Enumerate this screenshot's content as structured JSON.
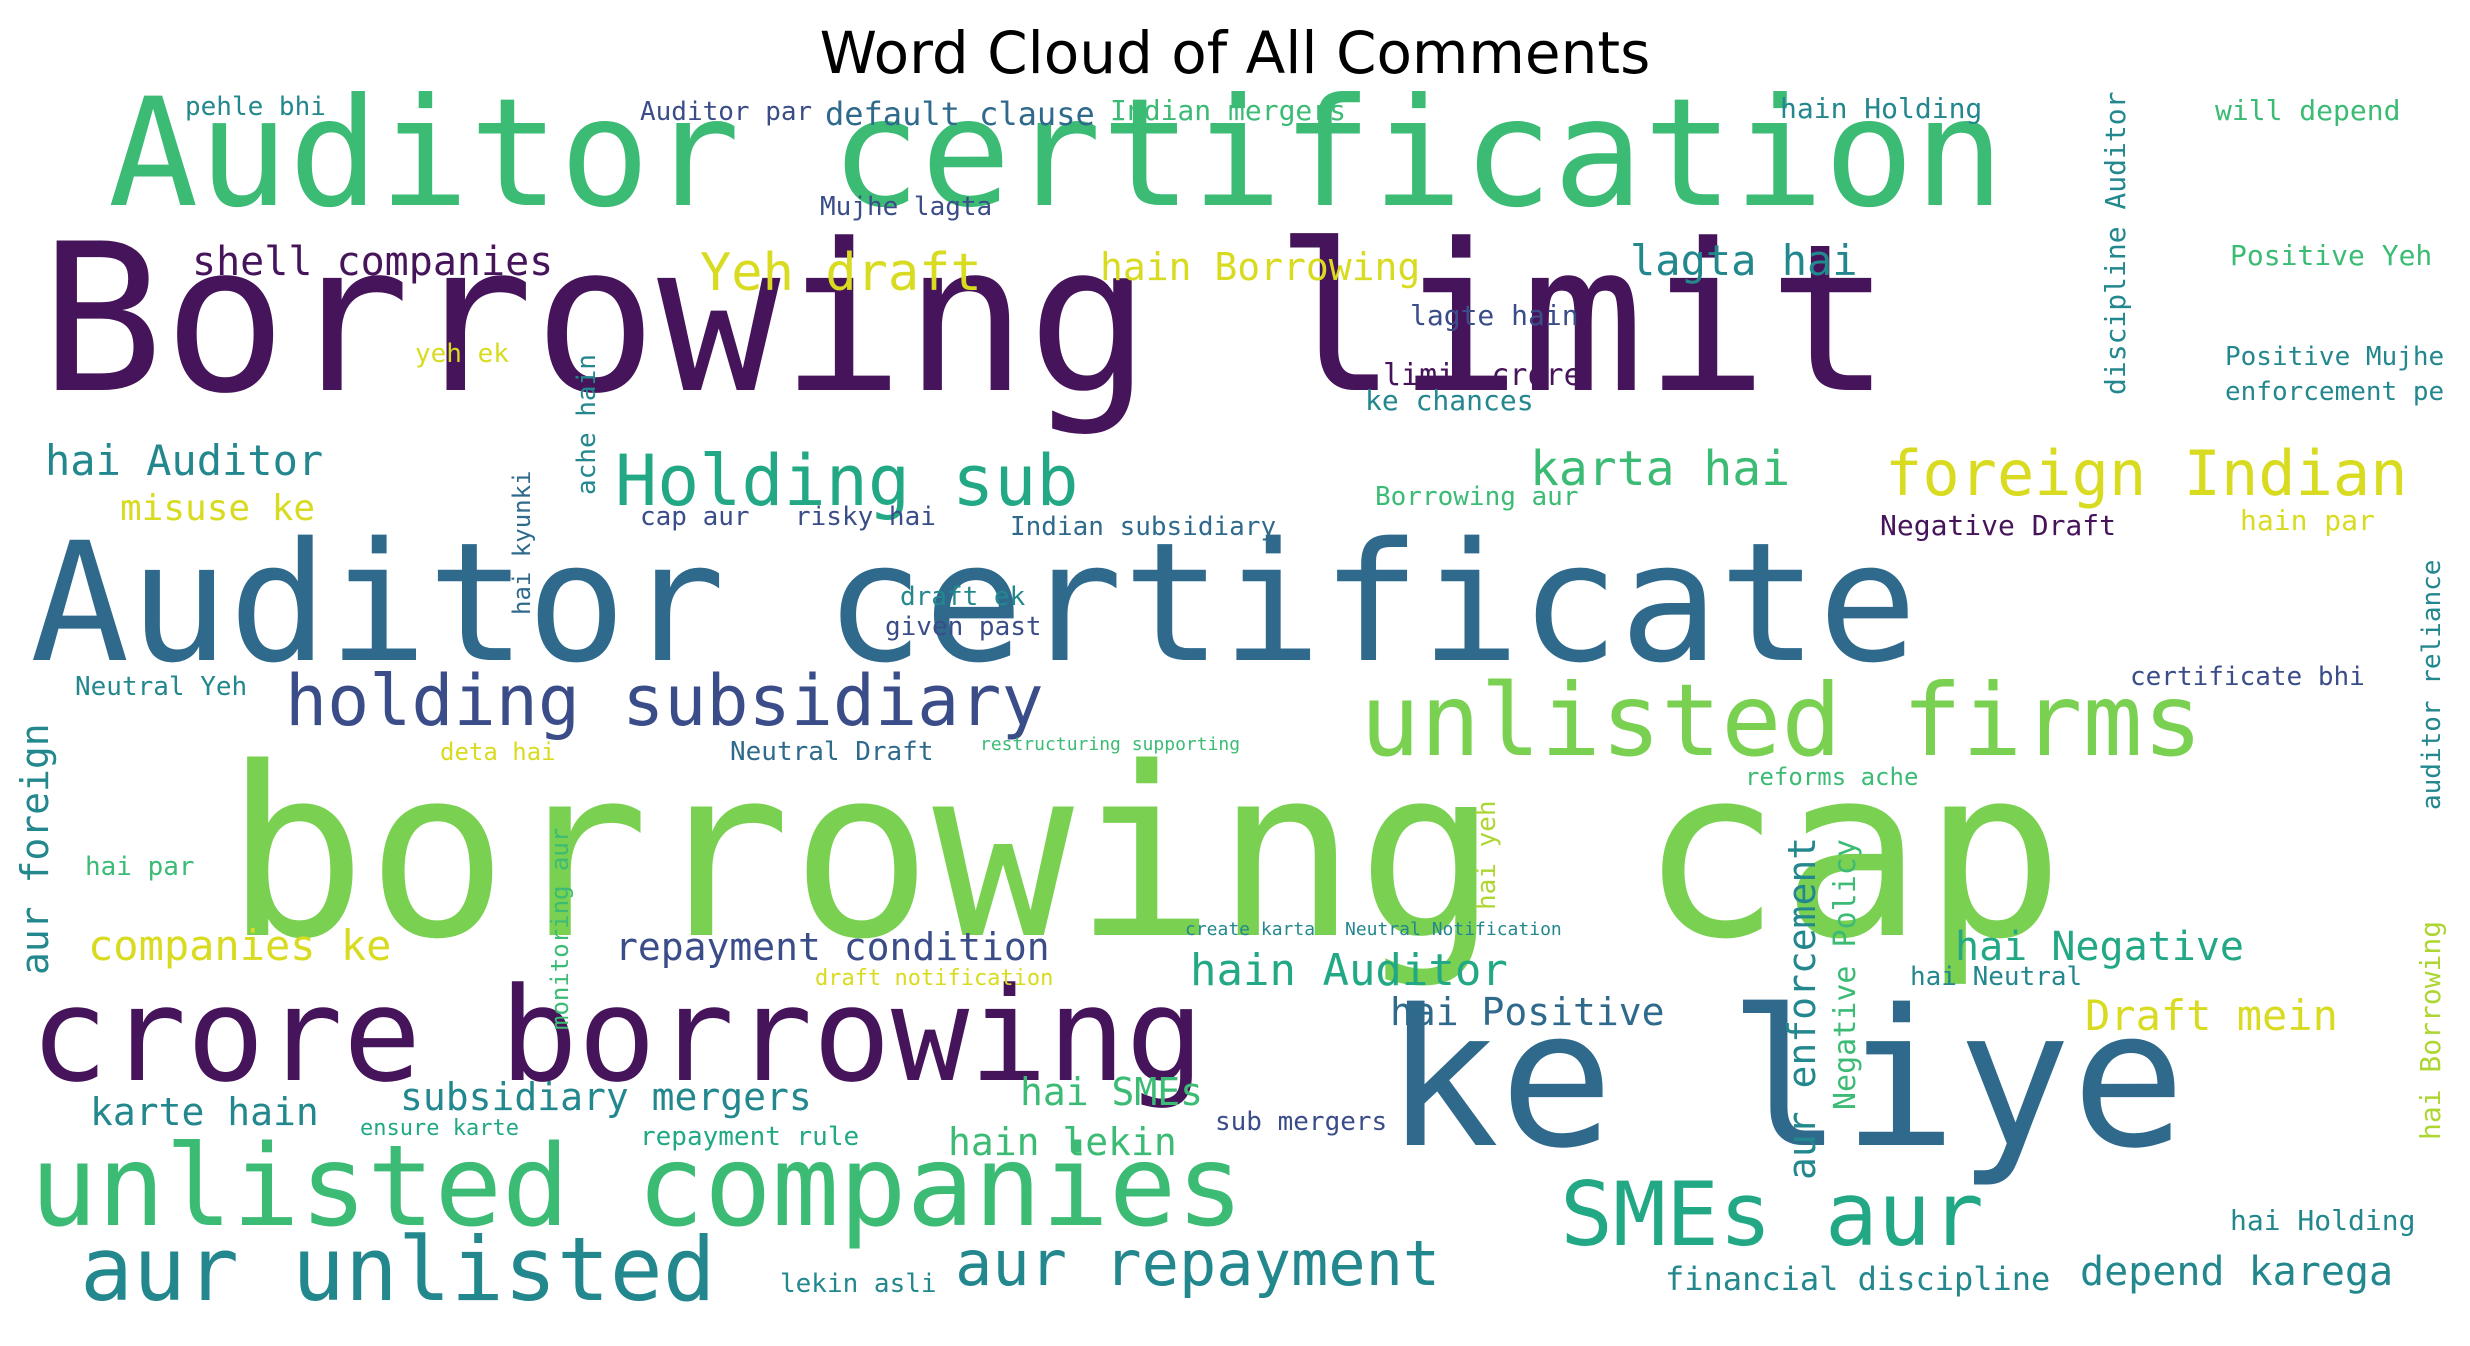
{
  "chart_data": {
    "type": "wordcloud",
    "title": "Word Cloud of All Comments",
    "colormap": "viridis",
    "colors": {
      "dark_purple": "#46145a",
      "purple": "#482a78",
      "blue_purple": "#3b4d89",
      "blue": "#2f6a8d",
      "teal": "#23878e",
      "green_teal": "#22a884",
      "green": "#3cbb75",
      "light_green": "#7ad151",
      "yellow_green": "#aed633",
      "yellow": "#d8db20"
    },
    "words": [
      {
        "text": "Auditor certification",
        "weight": 100,
        "color": "green"
      },
      {
        "text": "Borrowing limit",
        "weight": 100,
        "color": "dark_purple"
      },
      {
        "text": "Auditor certificate",
        "weight": 100,
        "color": "blue"
      },
      {
        "text": "borrowing cap",
        "weight": 100,
        "color": "light_green"
      },
      {
        "text": "crore borrowing",
        "weight": 100,
        "color": "dark_purple"
      },
      {
        "text": "ke liye",
        "weight": 100,
        "color": "blue"
      },
      {
        "text": "unlisted companies",
        "weight": 100,
        "color": "green"
      },
      {
        "text": "unlisted firms",
        "weight": 100,
        "color": "light_green"
      },
      {
        "text": "aur unlisted",
        "weight": 100,
        "color": "teal"
      },
      {
        "text": "SMEs aur",
        "weight": 100,
        "color": "green_teal"
      },
      {
        "text": "holding subsidiary",
        "weight": 100,
        "color": "blue_purple"
      },
      {
        "text": "Holding sub",
        "weight": 100,
        "color": "green_teal"
      },
      {
        "text": "foreign Indian",
        "weight": 100,
        "color": "yellow"
      },
      {
        "text": "aur repayment",
        "weight": 100,
        "color": "teal"
      },
      {
        "text": "Yeh draft",
        "weight": 100,
        "color": "yellow"
      },
      {
        "text": "karta hai",
        "weight": 100,
        "color": "green"
      },
      {
        "text": "shell companies",
        "weight": 100,
        "color": "dark_purple"
      },
      {
        "text": "hai Auditor",
        "weight": 100,
        "color": "teal"
      },
      {
        "text": "lagta hai",
        "weight": 100,
        "color": "teal"
      },
      {
        "text": "hain Borrowing",
        "weight": 100,
        "color": "yellow"
      },
      {
        "text": "companies ke",
        "weight": 100,
        "color": "yellow"
      },
      {
        "text": "repayment condition",
        "weight": 100,
        "color": "blue_purple"
      },
      {
        "text": "hain Auditor",
        "weight": 100,
        "color": "green_teal"
      },
      {
        "text": "hai Negative",
        "weight": 100,
        "color": "green_teal"
      },
      {
        "text": "hai Positive",
        "weight": 100,
        "color": "blue"
      },
      {
        "text": "Draft mein",
        "weight": 100,
        "color": "yellow"
      },
      {
        "text": "subsidiary mergers",
        "weight": 100,
        "color": "teal"
      },
      {
        "text": "hai SMEs",
        "weight": 100,
        "color": "green"
      },
      {
        "text": "karte hain",
        "weight": 100,
        "color": "teal"
      },
      {
        "text": "hain lekin",
        "weight": 100,
        "color": "green"
      },
      {
        "text": "depend karega",
        "weight": 100,
        "color": "teal"
      },
      {
        "text": "financial discipline",
        "weight": 100,
        "color": "teal"
      },
      {
        "text": "misuse ke",
        "weight": 100,
        "color": "yellow"
      },
      {
        "text": "default clause",
        "weight": 100,
        "color": "blue"
      },
      {
        "text": "Indian mergers",
        "weight": 100,
        "color": "green"
      },
      {
        "text": "Auditor par",
        "weight": 100,
        "color": "blue_purple"
      },
      {
        "text": "pehle bhi",
        "weight": 100,
        "color": "teal"
      },
      {
        "text": "hain Holding",
        "weight": 100,
        "color": "teal"
      },
      {
        "text": "will depend",
        "weight": 100,
        "color": "green"
      },
      {
        "text": "Mujhe lagta",
        "weight": 100,
        "color": "blue_purple"
      },
      {
        "text": "Positive Yeh",
        "weight": 100,
        "color": "green"
      },
      {
        "text": "Positive Mujhe",
        "weight": 100,
        "color": "teal"
      },
      {
        "text": "enforcement pe",
        "weight": 100,
        "color": "teal"
      },
      {
        "text": "lagte hain",
        "weight": 100,
        "color": "blue_purple"
      },
      {
        "text": "limit crore",
        "weight": 100,
        "color": "dark_purple"
      },
      {
        "text": "ke chances",
        "weight": 100,
        "color": "teal"
      },
      {
        "text": "yeh ek",
        "weight": 100,
        "color": "yellow"
      },
      {
        "text": "Borrowing aur",
        "weight": 100,
        "color": "green"
      },
      {
        "text": "cap aur",
        "weight": 100,
        "color": "blue_purple"
      },
      {
        "text": "risky hai",
        "weight": 100,
        "color": "blue_purple"
      },
      {
        "text": "Indian subsidiary",
        "weight": 100,
        "color": "blue"
      },
      {
        "text": "Negative Draft",
        "weight": 100,
        "color": "dark_purple"
      },
      {
        "text": "hain par",
        "weight": 100,
        "color": "yellow"
      },
      {
        "text": "draft ek",
        "weight": 100,
        "color": "teal"
      },
      {
        "text": "given past",
        "weight": 100,
        "color": "blue_purple"
      },
      {
        "text": "certificate bhi",
        "weight": 100,
        "color": "blue_purple"
      },
      {
        "text": "Neutral Yeh",
        "weight": 100,
        "color": "teal"
      },
      {
        "text": "Neutral Draft",
        "weight": 100,
        "color": "blue"
      },
      {
        "text": "deta hai",
        "weight": 100,
        "color": "yellow"
      },
      {
        "text": "reforms ache",
        "weight": 100,
        "color": "green"
      },
      {
        "text": "hai par",
        "weight": 100,
        "color": "green"
      },
      {
        "text": "aur foreign",
        "weight": 100,
        "color": "teal"
      },
      {
        "text": "aur enforcement",
        "weight": 100,
        "color": "teal"
      },
      {
        "text": "Negative Policy",
        "weight": 100,
        "color": "green"
      },
      {
        "text": "hai Neutral",
        "weight": 100,
        "color": "teal"
      },
      {
        "text": "hai Holding",
        "weight": 100,
        "color": "teal"
      },
      {
        "text": "hai Borrowing",
        "weight": 100,
        "color": "yellow_green"
      },
      {
        "text": "repayment rule",
        "weight": 100,
        "color": "green_teal"
      },
      {
        "text": "ensure karte",
        "weight": 100,
        "color": "green_teal"
      },
      {
        "text": "sub mergers",
        "weight": 100,
        "color": "blue_purple"
      },
      {
        "text": "lekin asli",
        "weight": 100,
        "color": "teal"
      },
      {
        "text": "discipline Auditor",
        "weight": 100,
        "color": "teal"
      },
      {
        "text": "auditor reliance",
        "weight": 100,
        "color": "teal"
      },
      {
        "text": "ache hain",
        "weight": 100,
        "color": "teal"
      },
      {
        "text": "hai kyunki",
        "weight": 100,
        "color": "blue"
      },
      {
        "text": "monitoring aur",
        "weight": 100,
        "color": "green"
      },
      {
        "text": "draft notification",
        "weight": 100,
        "color": "yellow"
      },
      {
        "text": "hai yeh",
        "weight": 100,
        "color": "yellow_green"
      },
      {
        "text": "create karta",
        "weight": 100,
        "color": "teal"
      },
      {
        "text": "Neutral Notification",
        "weight": 100,
        "color": "teal"
      },
      {
        "text": "restructuring supporting",
        "weight": 100,
        "color": "green"
      }
    ]
  }
}
